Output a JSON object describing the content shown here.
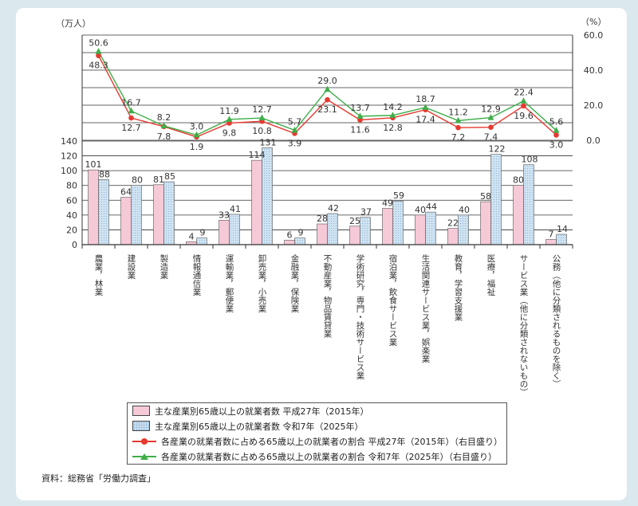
{
  "chart_data": {
    "type": "bar+line",
    "y_left_unit": "（万人）",
    "y_right_unit": "（%）",
    "y_left_ticks": [
      "0",
      "20",
      "40",
      "60",
      "80",
      "100",
      "120",
      "140"
    ],
    "y_right_ticks": [
      "0.0",
      "20.0",
      "40.0",
      "60.0"
    ],
    "ylim_left": [
      0,
      140
    ],
    "ylim_right": [
      0,
      60
    ],
    "categories": [
      "農業，林業",
      "建設業",
      "製造業",
      "情報通信業",
      "運輸業，郵便業",
      "卸売業，小売業",
      "金融業，保険業",
      "不動産業，物品賃貸業",
      "学術研究，専門・技術サービス業",
      "宿泊業，飲食サービス業",
      "生活関連サービス業，娯楽業",
      "教育，学習支援業",
      "医療，福祉",
      "サービス業（他に分類されないもの）",
      "公務（他に分類されるものを除く）"
    ],
    "series": [
      {
        "name": "主な産業別65歳以上の就業者数 平成27年（2015年）",
        "type": "bar",
        "axis": "left",
        "color": "#f6c9d7",
        "values": [
          101,
          64,
          81,
          4,
          33,
          114,
          6,
          28,
          25,
          49,
          40,
          22,
          58,
          80,
          7
        ],
        "labels": [
          "101",
          "64",
          "81",
          "4",
          "33",
          "114",
          "6",
          "28",
          "25",
          "49",
          "40",
          "22",
          "58",
          "80",
          "7"
        ]
      },
      {
        "name": "主な産業別65歳以上の就業者数 令和7年（2025年）",
        "type": "bar",
        "axis": "left",
        "color": "#cfe3f2",
        "values": [
          88,
          80,
          85,
          9,
          41,
          131,
          9,
          42,
          37,
          59,
          44,
          40,
          122,
          108,
          14
        ],
        "labels": [
          "88",
          "80",
          "85",
          "9",
          "41",
          "131",
          "9",
          "42",
          "37",
          "59",
          "44",
          "40",
          "122",
          "108",
          "14"
        ]
      },
      {
        "name": "各産業の就業者数に占める65歳以上の就業者の割合 平成27年（2015年）（右目盛り）",
        "type": "line",
        "axis": "right",
        "color": "#e6392f",
        "marker": "circle",
        "values": [
          48.3,
          12.7,
          7.8,
          1.9,
          9.8,
          10.8,
          3.9,
          23.1,
          11.6,
          12.8,
          17.4,
          7.2,
          7.4,
          19.6,
          3.0
        ],
        "labels": [
          "48.3",
          "12.7",
          "7.8",
          "1.9",
          "9.8",
          "10.8",
          "3.9",
          "23.1",
          "11.6",
          "12.8",
          "17.4",
          "7.2",
          "7.4",
          "19.6",
          "3.0"
        ]
      },
      {
        "name": "各産業の就業者数に占める65歳以上の就業者の割合 令和7年（2025年）（右目盛り）",
        "type": "line",
        "axis": "right",
        "color": "#3fae49",
        "marker": "triangle",
        "values": [
          50.6,
          16.7,
          8.2,
          3.0,
          11.9,
          12.7,
          5.7,
          29.0,
          13.7,
          14.2,
          18.7,
          11.2,
          12.9,
          22.4,
          5.6
        ],
        "labels": [
          "50.6",
          "16.7",
          "8.2",
          "3.0",
          "11.9",
          "12.7",
          "5.7",
          "29.0",
          "13.7",
          "14.2",
          "18.7",
          "11.2",
          "12.9",
          "22.4",
          "5.6"
        ]
      }
    ]
  },
  "legend": [
    "主な産業別65歳以上の就業者数 平成27年（2015年）",
    "主な産業別65歳以上の就業者数 令和7年（2025年）",
    "各産業の就業者数に占める65歳以上の就業者の割合 平成27年（2015年）（右目盛り）",
    "各産業の就業者数に占める65歳以上の就業者の割合 令和7年（2025年）（右目盛り）"
  ],
  "source": "資料：総務省「労働力調査」"
}
